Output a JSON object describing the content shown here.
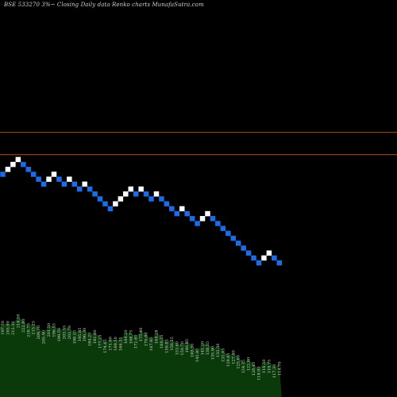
{
  "title": "BSE 533270  3%~  Closing Daily data  Renko  charts MunafaSutra.com",
  "colors": {
    "background": "#000000",
    "up_brick": "#ffffff",
    "down_brick": "#1e6be6",
    "level_line": "#b5531f",
    "volume_fill": "#0a3a0a"
  },
  "chart_data": [
    {
      "type": "renko",
      "title": "BSE 533270  3%~  Closing Daily data  Renko  charts MunafaSutra.com",
      "levels": [
        8,
        17
      ],
      "bricks": [
        {
          "dir": "down",
          "level": 0
        },
        {
          "dir": "up",
          "level": 2
        },
        {
          "dir": "up",
          "level": 4
        },
        {
          "dir": "up",
          "level": 6
        },
        {
          "dir": "down",
          "level": 4
        },
        {
          "dir": "down",
          "level": 2
        },
        {
          "dir": "down",
          "level": 0
        },
        {
          "dir": "down",
          "level": -2
        },
        {
          "dir": "down",
          "level": -4
        },
        {
          "dir": "up",
          "level": -2
        },
        {
          "dir": "up",
          "level": 0
        },
        {
          "dir": "down",
          "level": -2
        },
        {
          "dir": "down",
          "level": -4
        },
        {
          "dir": "up",
          "level": -2
        },
        {
          "dir": "down",
          "level": -4
        },
        {
          "dir": "down",
          "level": -6
        },
        {
          "dir": "up",
          "level": -4
        },
        {
          "dir": "down",
          "level": -6
        },
        {
          "dir": "down",
          "level": -8
        },
        {
          "dir": "down",
          "level": -10
        },
        {
          "dir": "down",
          "level": -12
        },
        {
          "dir": "down",
          "level": -14
        },
        {
          "dir": "up",
          "level": -12
        },
        {
          "dir": "up",
          "level": -10
        },
        {
          "dir": "up",
          "level": -8
        },
        {
          "dir": "up",
          "level": -6
        },
        {
          "dir": "down",
          "level": -8
        },
        {
          "dir": "up",
          "level": -6
        },
        {
          "dir": "down",
          "level": -8
        },
        {
          "dir": "down",
          "level": -10
        },
        {
          "dir": "up",
          "level": -8
        },
        {
          "dir": "down",
          "level": -10
        },
        {
          "dir": "down",
          "level": -12
        },
        {
          "dir": "down",
          "level": -14
        },
        {
          "dir": "down",
          "level": -16
        },
        {
          "dir": "up",
          "level": -14
        },
        {
          "dir": "down",
          "level": -16
        },
        {
          "dir": "down",
          "level": -18
        },
        {
          "dir": "down",
          "level": -20
        },
        {
          "dir": "up",
          "level": -18
        },
        {
          "dir": "up",
          "level": -16
        },
        {
          "dir": "down",
          "level": -18
        },
        {
          "dir": "down",
          "level": -20
        },
        {
          "dir": "down",
          "level": -22
        },
        {
          "dir": "down",
          "level": -24
        },
        {
          "dir": "down",
          "level": -26
        },
        {
          "dir": "down",
          "level": -28
        },
        {
          "dir": "down",
          "level": -30
        },
        {
          "dir": "down",
          "level": -32
        },
        {
          "dir": "down",
          "level": -34
        },
        {
          "dir": "down",
          "level": -36
        },
        {
          "dir": "up",
          "level": -34
        },
        {
          "dir": "up",
          "level": -32
        },
        {
          "dir": "down",
          "level": -34
        },
        {
          "dir": "down",
          "level": -36
        }
      ],
      "volume_labels": [
        "197.70",
        "205.90",
        "212.30",
        "216.50",
        "222.80",
        "218.70",
        "213.25",
        "209.70",
        "205.90",
        "201.50",
        "196.55",
        "199.58",
        "203.55",
        "202.70",
        "198.55",
        "195.85",
        "190.30",
        "184.20",
        "181.00",
        "177.25",
        "174.65",
        "171.00",
        "169.50",
        "166.35",
        "164.20",
        "168.75",
        "172.60",
        "175.40",
        "170.80",
        "167.60",
        "164.28",
        "160.55",
        "159.85",
        "156.25",
        "153.60",
        "150.70",
        "146.85",
        "149.30",
        "145.80",
        "141.20",
        "138.55",
        "135.90",
        "133.30",
        "131.65",
        "129.85",
        "127.40",
        "125.60",
        "124.35",
        "122.80",
        "120.45",
        "118.90",
        "116.50",
        "119.75",
        "117.30",
        "114.70"
      ]
    }
  ]
}
